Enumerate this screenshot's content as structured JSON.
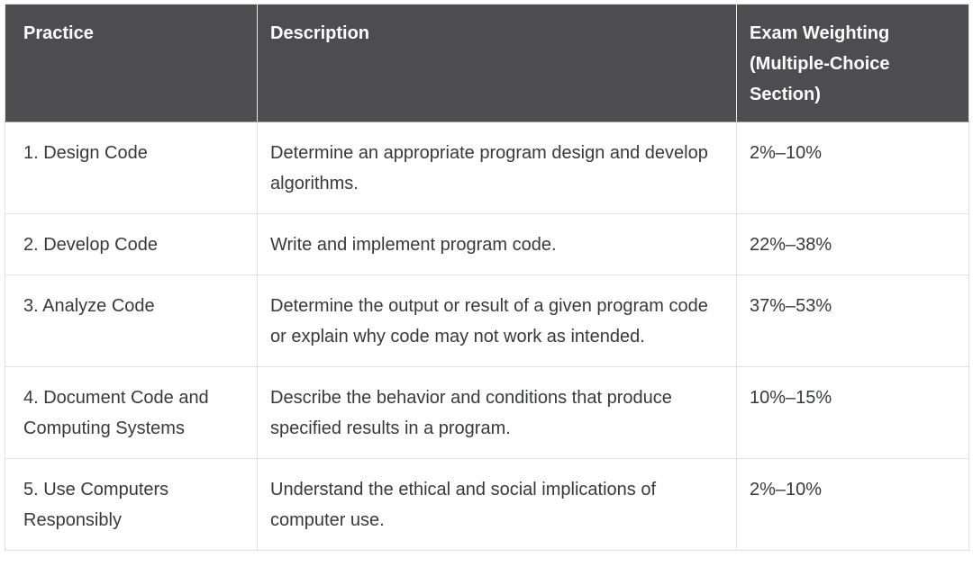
{
  "table": {
    "columns": [
      {
        "id": "practice",
        "label": "Practice"
      },
      {
        "id": "description",
        "label": "Description"
      },
      {
        "id": "weighting",
        "label": "Exam Weighting (Multiple-Choice Section)"
      }
    ],
    "rows": [
      {
        "practice": "1. Design Code",
        "description": "Determine an appropriate program design and develop algorithms.",
        "weighting": "2%–10%"
      },
      {
        "practice": "2. Develop Code",
        "description": "Write and implement program code.",
        "weighting": "22%–38%"
      },
      {
        "practice": "3. Analyze Code",
        "description": "Determine the output or result of a given program code or explain why code may not work as intended.",
        "weighting": "37%–53%"
      },
      {
        "practice": "4. Document Code and Computing Systems",
        "description": "Describe the behavior and conditions that produce specified results in a program.",
        "weighting": "10%–15%"
      },
      {
        "practice": "5. Use Computers Responsibly",
        "description": "Understand the ethical and social implications of computer use.",
        "weighting": "2%–10%"
      }
    ]
  },
  "colors": {
    "header_bg": "#4d4d4f",
    "header_text": "#ffffff",
    "body_text": "#37393b",
    "border": "#e0e0e0",
    "row_bg": "#ffffff"
  }
}
